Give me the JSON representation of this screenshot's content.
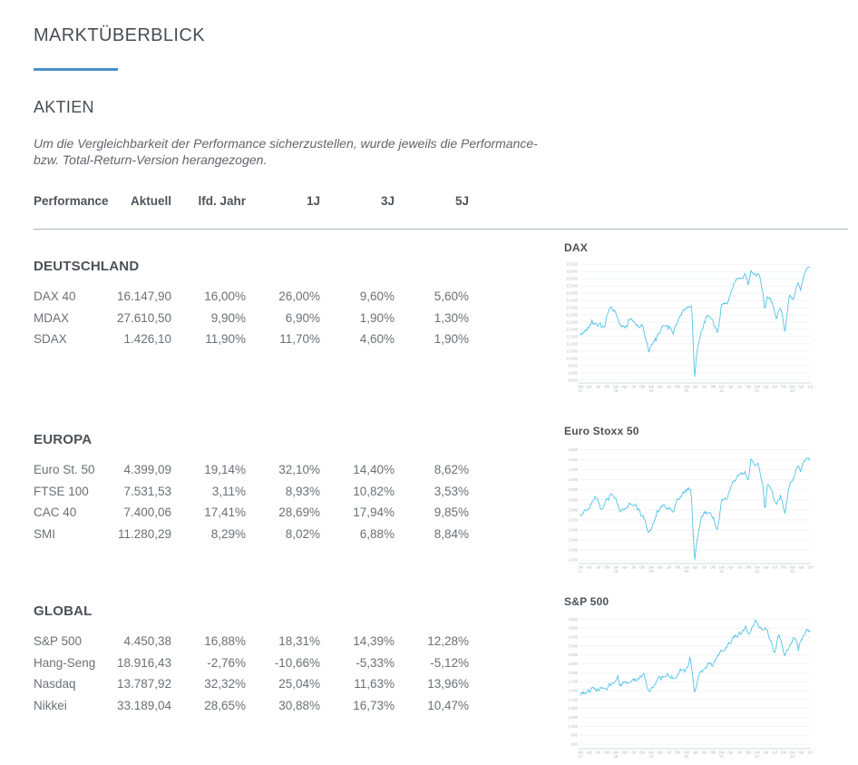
{
  "header": {
    "title": "MARKTÜBERBLICK",
    "section": "AKTIEN",
    "note_lines": [
      "Um die Vergleichbarkeit der Performance sicherzustellen, wurde jeweils die Performance-",
      "bzw. Total-Return-Version herangezogen."
    ]
  },
  "colors": {
    "accent_blue": "#4a90c8",
    "chart_line": "#55c3e8",
    "heading_text": "#474e54",
    "table_text": "#6a7176",
    "divider": "#b0b4b7"
  },
  "table": {
    "columns": [
      "Performance",
      "Aktuell",
      "lfd. Jahr",
      "1J",
      "3J",
      "5J"
    ],
    "sections": [
      {
        "name": "DEUTSCHLAND",
        "rows": [
          {
            "label": "DAX 40",
            "values": [
              "16.147,90",
              "16,00%",
              "26,00%",
              "9,60%",
              "5,60%"
            ]
          },
          {
            "label": "MDAX",
            "values": [
              "27.610,50",
              "9,90%",
              "6,90%",
              "1,90%",
              "1,30%"
            ]
          },
          {
            "label": "SDAX",
            "values": [
              "1.426,10",
              "11,90%",
              "11,70%",
              "4,60%",
              "1,90%"
            ]
          }
        ]
      },
      {
        "name": "EUROPA",
        "rows": [
          {
            "label": "Euro St. 50",
            "values": [
              "4.399,09",
              "19,14%",
              "32,10%",
              "14,40%",
              "8,62%"
            ]
          },
          {
            "label": "FTSE 100",
            "values": [
              "7.531,53",
              "3,11%",
              "8,93%",
              "10,82%",
              "3,53%"
            ]
          },
          {
            "label": "CAC 40",
            "values": [
              "7.400,06",
              "17,41%",
              "28,69%",
              "17,94%",
              "9,85%"
            ]
          },
          {
            "label": "SMI",
            "values": [
              "11.280,29",
              "8,29%",
              "8,02%",
              "6,88%",
              "8,84%"
            ]
          }
        ]
      },
      {
        "name": "GLOBAL",
        "rows": [
          {
            "label": "S&P 500",
            "values": [
              "4.450,38",
              "16,88%",
              "18,31%",
              "14,39%",
              "12,28%"
            ]
          },
          {
            "label": "Hang-Seng",
            "values": [
              "18.916,43",
              "-2,76%",
              "-10,66%",
              "-5,33%",
              "-5,12%"
            ]
          },
          {
            "label": "Nasdaq",
            "values": [
              "13.787,92",
              "32,32%",
              "25,04%",
              "11,63%",
              "13,96%"
            ]
          },
          {
            "label": "Nikkei",
            "values": [
              "33.189,04",
              "28,65%",
              "30,88%",
              "16,73%",
              "10,47%"
            ]
          }
        ]
      }
    ]
  },
  "chart_data": [
    {
      "type": "line",
      "title": "DAX",
      "color": "#55c3e8",
      "grid": true,
      "legend": "none",
      "seed": 42,
      "t_max": 78,
      "y_min": 8300,
      "y_max": 16700,
      "y_tick_values": [
        16500,
        16000,
        15500,
        15000,
        14500,
        14000,
        13500,
        13000,
        12500,
        12000,
        11500,
        11000,
        10500,
        10000,
        9500,
        9000,
        8500
      ],
      "y_tick_labels": [
        "16.500",
        "16.000",
        "15.500",
        "15.000",
        "14.500",
        "14.000",
        "13.500",
        "13.000",
        "12.500",
        "12.000",
        "11.500",
        "11.000",
        "10.500",
        "10.000",
        "9.500",
        "9.000",
        "8.500"
      ],
      "x_ticks": [
        "Jan 17",
        "Apr",
        "Jul",
        "Okt",
        "Jan 18",
        "Apr",
        "Jul",
        "Okt",
        "Jan 19",
        "Apr",
        "Jul",
        "Okt",
        "Jan 20",
        "Apr",
        "Jul",
        "Okt",
        "Jan 21",
        "Apr",
        "Jul",
        "Okt",
        "Jan 22",
        "Apr",
        "Jul",
        "Okt",
        "Jan 23",
        "Apr",
        "Jul"
      ],
      "anchors": [
        [
          0,
          11580
        ],
        [
          2,
          11990
        ],
        [
          4,
          12600
        ],
        [
          6,
          12330
        ],
        [
          8,
          12100
        ],
        [
          10,
          13460
        ],
        [
          12,
          13230
        ],
        [
          13.5,
          12250
        ],
        [
          15,
          12050
        ],
        [
          17,
          12800
        ],
        [
          19,
          12350
        ],
        [
          21,
          12250
        ],
        [
          23.3,
          10500
        ],
        [
          26,
          11500
        ],
        [
          28,
          12300
        ],
        [
          30,
          12250
        ],
        [
          31.5,
          11700
        ],
        [
          33,
          12600
        ],
        [
          35,
          13250
        ],
        [
          37,
          13500
        ],
        [
          37.8,
          13740
        ],
        [
          38.8,
          8560
        ],
        [
          39.5,
          10300
        ],
        [
          41,
          11800
        ],
        [
          42.5,
          12800
        ],
        [
          44,
          12900
        ],
        [
          45.5,
          12350
        ],
        [
          46.5,
          11550
        ],
        [
          48,
          13700
        ],
        [
          50,
          13900
        ],
        [
          52,
          15100
        ],
        [
          54,
          15600
        ],
        [
          56,
          15800
        ],
        [
          57,
          15100
        ],
        [
          58,
          16050
        ],
        [
          59.5,
          15800
        ],
        [
          60.5,
          15900
        ],
        [
          62,
          14400
        ],
        [
          62.7,
          13100
        ],
        [
          63.5,
          14400
        ],
        [
          65,
          13900
        ],
        [
          66.5,
          12800
        ],
        [
          68,
          13600
        ],
        [
          69.5,
          12000
        ],
        [
          71,
          14300
        ],
        [
          72.5,
          14100
        ],
        [
          74,
          15300
        ],
        [
          74.8,
          14800
        ],
        [
          76,
          15900
        ],
        [
          77.3,
          16300
        ],
        [
          78,
          16150
        ]
      ]
    },
    {
      "type": "line",
      "title": "Euro Stoxx 50",
      "color": "#55c3e8",
      "grid": true,
      "legend": "none",
      "seed": 137,
      "t_max": 78,
      "y_min": 2330,
      "y_max": 4700,
      "y_tick_values": [
        4600,
        4400,
        4200,
        4000,
        3800,
        3600,
        3400,
        3200,
        3000,
        2800,
        2600,
        2400
      ],
      "y_tick_labels": [
        "4.600",
        "4.400",
        "4.200",
        "4.000",
        "3.800",
        "3.600",
        "3.400",
        "3.200",
        "3.000",
        "2.800",
        "2.600",
        "2.400"
      ],
      "x_ticks": [
        "Jan 17",
        "Apr",
        "Jul",
        "Okt",
        "Jan 18",
        "Apr",
        "Jul",
        "Okt",
        "Jan 19",
        "Apr",
        "Jul",
        "Okt",
        "Jan 20",
        "Apr",
        "Jul",
        "Okt",
        "Jan 21",
        "Apr",
        "Jul",
        "Okt",
        "Jan 22",
        "Apr",
        "Jul",
        "Okt",
        "Jan 23",
        "Apr",
        "Jul"
      ],
      "anchors": [
        [
          0,
          3290
        ],
        [
          2,
          3390
        ],
        [
          4,
          3560
        ],
        [
          5,
          3650
        ],
        [
          7,
          3430
        ],
        [
          10,
          3700
        ],
        [
          12,
          3650
        ],
        [
          13.5,
          3350
        ],
        [
          15,
          3440
        ],
        [
          17,
          3550
        ],
        [
          19,
          3450
        ],
        [
          21,
          3320
        ],
        [
          23.3,
          2950
        ],
        [
          26,
          3300
        ],
        [
          28,
          3500
        ],
        [
          30,
          3450
        ],
        [
          31.5,
          3330
        ],
        [
          33,
          3600
        ],
        [
          35,
          3750
        ],
        [
          37.5,
          3860
        ],
        [
          38.8,
          2400
        ],
        [
          39.5,
          2800
        ],
        [
          41,
          3230
        ],
        [
          42.5,
          3350
        ],
        [
          44,
          3300
        ],
        [
          45.5,
          3200
        ],
        [
          46.5,
          2950
        ],
        [
          48,
          3570
        ],
        [
          50,
          3670
        ],
        [
          52,
          3990
        ],
        [
          54,
          4080
        ],
        [
          56,
          4150
        ],
        [
          57,
          4000
        ],
        [
          58,
          4400
        ],
        [
          59.5,
          4250
        ],
        [
          60.5,
          4300
        ],
        [
          62,
          3900
        ],
        [
          62.7,
          3400
        ],
        [
          63.5,
          3900
        ],
        [
          65,
          3750
        ],
        [
          66.5,
          3470
        ],
        [
          68,
          3700
        ],
        [
          69.5,
          3350
        ],
        [
          71,
          3900
        ],
        [
          72.5,
          4050
        ],
        [
          74,
          4300
        ],
        [
          74.8,
          4150
        ],
        [
          76,
          4400
        ],
        [
          77.3,
          4470
        ],
        [
          78,
          4400
        ]
      ]
    },
    {
      "type": "line",
      "title": "S&P 500",
      "color": "#55c3e8",
      "grid": true,
      "legend": "none",
      "seed": 2023,
      "t_max": 78,
      "y_min": 450,
      "y_max": 4930,
      "y_tick_values": [
        4800,
        4500,
        4200,
        3900,
        3600,
        3300,
        3000,
        2700,
        2400,
        2100,
        1800,
        1500,
        1200,
        900,
        600
      ],
      "y_tick_labels": [
        "4.800",
        "4.500",
        "4.200",
        "3.900",
        "3.600",
        "3.300",
        "3.000",
        "2.700",
        "2.400",
        "2.100",
        "1.800",
        "1.500",
        "1.200",
        "900",
        "600"
      ],
      "x_ticks": [
        "Jan 17",
        "Apr",
        "Jul",
        "Okt",
        "Jan 18",
        "Apr",
        "Jul",
        "Okt",
        "Jan 19",
        "Apr",
        "Jul",
        "Okt",
        "Jan 20",
        "Apr",
        "Jul",
        "Okt",
        "Jan 21",
        "Apr",
        "Jul",
        "Okt",
        "Jan 22",
        "Apr",
        "Jul",
        "Okt",
        "Jan 23",
        "Apr",
        "Jul"
      ],
      "anchors": [
        [
          0,
          2270
        ],
        [
          2,
          2360
        ],
        [
          4,
          2390
        ],
        [
          6,
          2430
        ],
        [
          8,
          2470
        ],
        [
          10,
          2580
        ],
        [
          12,
          2700
        ],
        [
          12.8,
          2870
        ],
        [
          13.5,
          2610
        ],
        [
          15,
          2650
        ],
        [
          17,
          2720
        ],
        [
          19,
          2800
        ],
        [
          20.5,
          2900
        ],
        [
          21.5,
          2920
        ],
        [
          23.3,
          2350
        ],
        [
          26,
          2800
        ],
        [
          28,
          2920
        ],
        [
          30,
          2950
        ],
        [
          31.5,
          2850
        ],
        [
          33,
          3000
        ],
        [
          35,
          3140
        ],
        [
          37.5,
          3390
        ],
        [
          38.8,
          2240
        ],
        [
          40,
          2840
        ],
        [
          42,
          3100
        ],
        [
          44,
          3400
        ],
        [
          44.8,
          3270
        ],
        [
          46,
          3520
        ],
        [
          47,
          3620
        ],
        [
          48,
          3760
        ],
        [
          50,
          3900
        ],
        [
          52,
          4180
        ],
        [
          54,
          4300
        ],
        [
          56.5,
          4530
        ],
        [
          57.3,
          4310
        ],
        [
          59.8,
          4790
        ],
        [
          61,
          4500
        ],
        [
          62,
          4350
        ],
        [
          62.8,
          4600
        ],
        [
          64.5,
          4130
        ],
        [
          66,
          3670
        ],
        [
          67.5,
          4300
        ],
        [
          69.3,
          3580
        ],
        [
          71,
          3850
        ],
        [
          72.8,
          4180
        ],
        [
          74,
          3860
        ],
        [
          75.5,
          4180
        ],
        [
          77,
          4430
        ],
        [
          78,
          4450
        ]
      ]
    }
  ]
}
